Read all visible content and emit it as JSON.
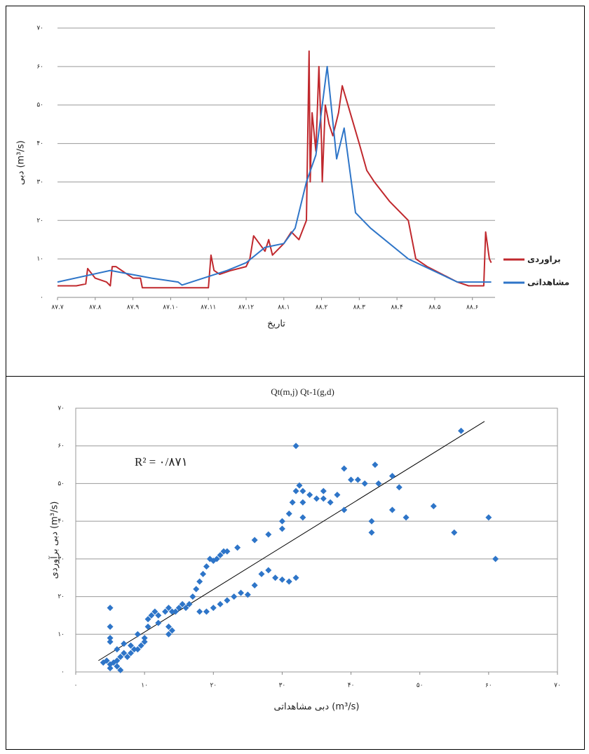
{
  "chart_data": [
    {
      "type": "line",
      "y_label": "دبی (m³/s)",
      "x_label": "تاریخ",
      "xlim": [
        0,
        11.6
      ],
      "xticks": [
        {
          "value": 0,
          "label": "۸۷.۷"
        },
        {
          "value": 1,
          "label": "۸۷.۸"
        },
        {
          "value": 2,
          "label": "۸۷.۹"
        },
        {
          "value": 3,
          "label": "۸۷.۱۰"
        },
        {
          "value": 4,
          "label": "۸۷.۱۱"
        },
        {
          "value": 5,
          "label": "۸۷.۱۲"
        },
        {
          "value": 6,
          "label": "۸۸.۱"
        },
        {
          "value": 7,
          "label": "۸۸.۲"
        },
        {
          "value": 8,
          "label": "۸۸.۳"
        },
        {
          "value": 9,
          "label": "۸۸.۴"
        },
        {
          "value": 10,
          "label": "۸۸.۵"
        },
        {
          "value": 11,
          "label": "۸۸.۶"
        }
      ],
      "ylim": [
        0,
        70
      ],
      "yticks": [
        {
          "value": 0,
          "label": "۰"
        },
        {
          "value": 10,
          "label": "۱۰"
        },
        {
          "value": 20,
          "label": "۲۰"
        },
        {
          "value": 30,
          "label": "۳۰"
        },
        {
          "value": 40,
          "label": "۴۰"
        },
        {
          "value": 50,
          "label": "۵۰"
        },
        {
          "value": 60,
          "label": "۶۰"
        },
        {
          "value": 70,
          "label": "۷۰"
        }
      ],
      "grid": true,
      "legend": "right",
      "series": [
        {
          "name": "براوردی",
          "color": "#c0282d",
          "x": [
            0,
            0.5,
            0.75,
            0.8,
            1.0,
            1.3,
            1.4,
            1.45,
            1.55,
            1.7,
            2.0,
            2.2,
            2.25,
            2.3,
            3.0,
            4.0,
            4.07,
            4.15,
            4.3,
            4.6,
            5.0,
            5.1,
            5.2,
            5.35,
            5.5,
            5.6,
            5.7,
            5.9,
            6.0,
            6.2,
            6.4,
            6.6,
            6.67,
            6.7,
            6.75,
            6.85,
            6.93,
            7.0,
            7.02,
            7.1,
            7.2,
            7.3,
            7.45,
            7.55,
            7.7,
            8.0,
            8.2,
            8.4,
            8.8,
            9.3,
            9.5,
            9.8,
            10.2,
            10.6,
            10.9,
            11.3,
            11.35,
            11.45,
            11.5
          ],
          "values": [
            3,
            3,
            3.5,
            7.5,
            5,
            4,
            3,
            8,
            8,
            7,
            5,
            5,
            2.5,
            2.5,
            2.5,
            2.5,
            11,
            7,
            6,
            7,
            8,
            10,
            16,
            14,
            12,
            15,
            11,
            13,
            14,
            17,
            15,
            20,
            64,
            30,
            48,
            38,
            60,
            40,
            30,
            50,
            45,
            42,
            48,
            55,
            50,
            40,
            33,
            30,
            25,
            20,
            10,
            8,
            6,
            4,
            3,
            3,
            17,
            10,
            9
          ]
        },
        {
          "name": "مشاهداتی",
          "color": "#2e75c8",
          "x": [
            0,
            1.4,
            2.5,
            3.2,
            3.3,
            4.5,
            5.0,
            5.5,
            6.0,
            6.3,
            6.6,
            6.85,
            7.15,
            7.4,
            7.6,
            7.9,
            8.3,
            9.3,
            10.6,
            11.5
          ],
          "values": [
            4,
            7,
            5,
            4,
            3.2,
            7,
            9,
            13,
            14,
            18,
            30,
            37,
            60,
            36,
            44,
            22,
            18,
            10,
            4,
            4
          ]
        }
      ]
    },
    {
      "type": "scatter",
      "title": "Qt(m,j) Qt-1(g,d)",
      "annotation": "R² = ۰/۸۷۱",
      "y_label": "دبی برآوردی (m³/s)",
      "x_label": "دبی مشاهداتی (m³/s)",
      "color": "#2e75c8",
      "xlim": [
        0,
        70
      ],
      "xticks": [
        {
          "value": 0,
          "label": "۰"
        },
        {
          "value": 10,
          "label": "۱۰"
        },
        {
          "value": 20,
          "label": "۲۰"
        },
        {
          "value": 30,
          "label": "۳۰"
        },
        {
          "value": 40,
          "label": "۴۰"
        },
        {
          "value": 50,
          "label": "۵۰"
        },
        {
          "value": 60,
          "label": "۶۰"
        },
        {
          "value": 70,
          "label": "۷۰"
        }
      ],
      "ylim": [
        0,
        70
      ],
      "yticks": [
        {
          "value": 0,
          "label": "۰"
        },
        {
          "value": 10,
          "label": "۱۰"
        },
        {
          "value": 20,
          "label": "۲۰"
        },
        {
          "value": 30,
          "label": "۳۰"
        },
        {
          "value": 40,
          "label": "۴۰"
        },
        {
          "value": 50,
          "label": "۵۰"
        },
        {
          "value": 60,
          "label": "۶۰"
        },
        {
          "value": 70,
          "label": "۷۰"
        }
      ],
      "grid": true,
      "x": [
        4,
        4.5,
        5,
        5,
        5.5,
        6,
        6,
        6.5,
        5,
        5,
        5,
        5,
        6,
        6.5,
        7,
        7,
        7.5,
        8,
        8,
        8.5,
        9,
        9,
        9.5,
        10,
        10,
        10.5,
        10.5,
        11,
        11.5,
        12,
        12,
        13,
        13.5,
        14,
        13.5,
        13.5,
        14,
        14.5,
        15,
        15.5,
        16,
        16.5,
        17,
        17.5,
        18,
        18.5,
        19,
        19.5,
        20,
        20.5,
        21,
        21.5,
        22,
        18,
        19,
        20,
        21,
        22,
        23,
        24,
        25,
        26,
        23.5,
        26,
        28,
        27,
        28,
        29,
        30,
        31,
        32,
        30,
        30,
        31,
        31.5,
        32,
        32.5,
        33,
        33,
        33,
        32,
        34,
        35,
        36,
        36,
        37,
        38,
        39,
        39,
        40,
        41,
        42,
        43,
        43.5,
        44,
        43,
        46,
        46,
        47,
        48,
        52,
        55,
        56,
        60,
        61
      ],
      "y": [
        2.5,
        3,
        2,
        1,
        2.5,
        1.5,
        3,
        0.5,
        17,
        12,
        9,
        8,
        6,
        4,
        5,
        7.5,
        4,
        5,
        7,
        6,
        10,
        6,
        7,
        8,
        9,
        12,
        14,
        15,
        16,
        13,
        15,
        16,
        17,
        16,
        12,
        10,
        11,
        16,
        17,
        18,
        17,
        18,
        20,
        22,
        24,
        26,
        28,
        30,
        29.5,
        30,
        31,
        32,
        32,
        16,
        16,
        17,
        18,
        19,
        20,
        21,
        20.5,
        23,
        33,
        35,
        36.5,
        26,
        27,
        25,
        24.5,
        24,
        25,
        38,
        40,
        42,
        45,
        48,
        49.5,
        48,
        45,
        41,
        60,
        47,
        46,
        48,
        46,
        45,
        47,
        54,
        43,
        51,
        51,
        50,
        40,
        55,
        50,
        37,
        52,
        43,
        49,
        41,
        44,
        37,
        64,
        41,
        30
      ],
      "trendline": {
        "x": [
          3.3,
          59.4
        ],
        "y": [
          3,
          66.5
        ]
      }
    }
  ]
}
